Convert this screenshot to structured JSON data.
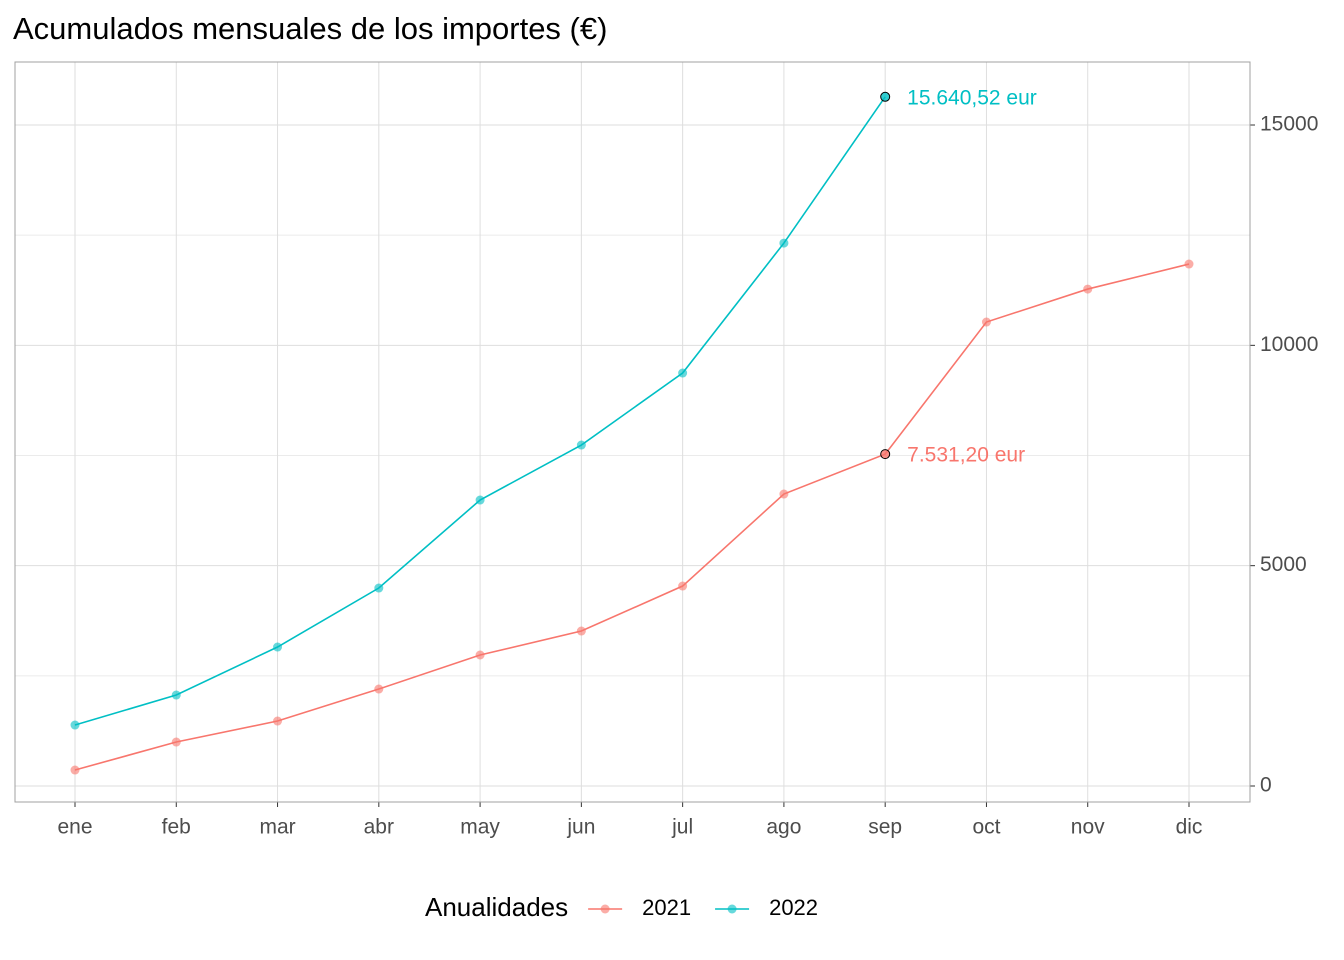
{
  "chart_data": {
    "type": "line",
    "title": "Acumulados mensuales de los importes (€)",
    "categories": [
      "ene",
      "feb",
      "mar",
      "abr",
      "may",
      "jun",
      "jul",
      "ago",
      "sep",
      "oct",
      "nov",
      "dic"
    ],
    "series": [
      {
        "name": "2021",
        "color": "#F8766D",
        "values": [
          363,
          998,
          1475,
          2201,
          2973,
          3517,
          4538,
          6626,
          7531.2,
          10529,
          11277,
          11845
        ],
        "value_labels": [
          null,
          null,
          null,
          null,
          null,
          null,
          null,
          null,
          "7.531,20 eur",
          null,
          null,
          null
        ]
      },
      {
        "name": "2022",
        "color": "#00BFC4",
        "values": [
          1384,
          2065,
          3154,
          4493,
          6490,
          7738,
          9372,
          12321,
          15640.52,
          null,
          null,
          null
        ],
        "value_labels": [
          null,
          null,
          null,
          null,
          null,
          null,
          null,
          null,
          "15.640,52 eur",
          null,
          null,
          null
        ]
      }
    ],
    "ylim": [
      -363,
      16430
    ],
    "yticks": [
      0,
      5000,
      10000,
      15000
    ],
    "y_minor_gridlines": [
      2500,
      7500,
      12500
    ],
    "y_axis_side": "right",
    "grid": true,
    "legend_title": "Anualidades",
    "legend_position": "bottom"
  }
}
